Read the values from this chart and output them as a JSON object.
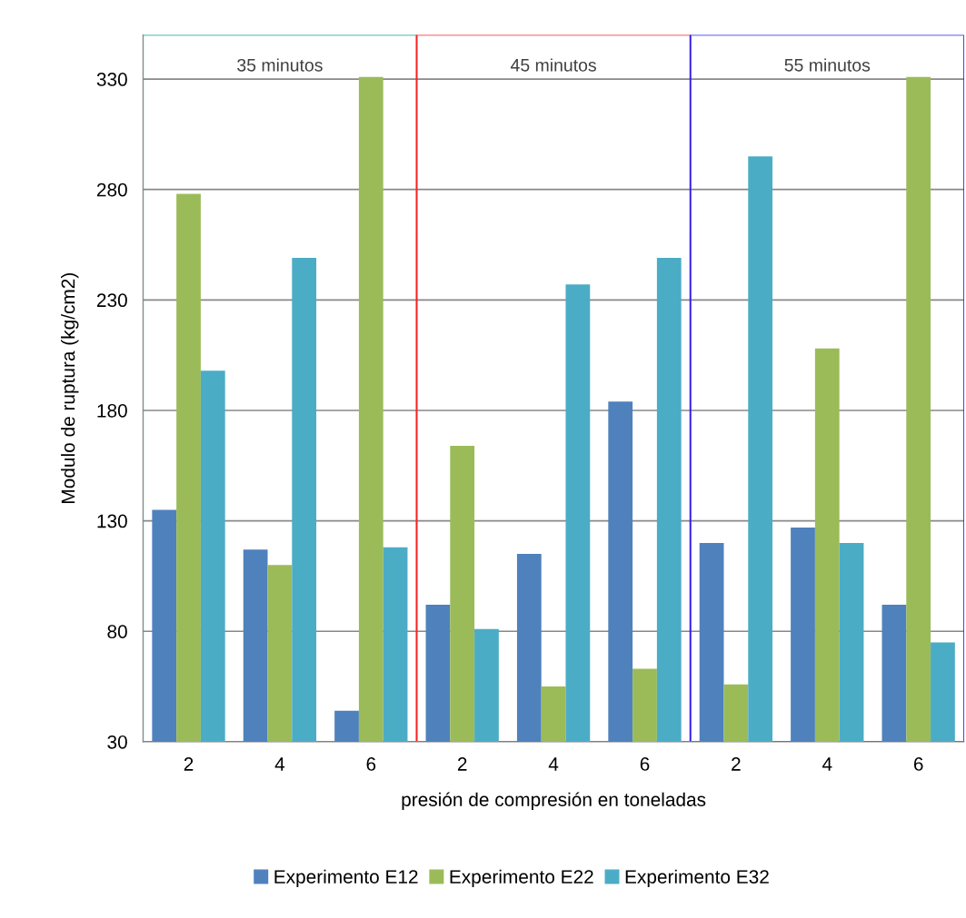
{
  "chart_data": {
    "type": "bar",
    "categories": [
      "2",
      "4",
      "6",
      "2",
      "4",
      "6",
      "2",
      "4",
      "6"
    ],
    "xlabel": "presión de compresión en toneladas",
    "ylabel": "Modulo de ruptura (kg/cm2)",
    "series": [
      {
        "name": "Experimento E12",
        "color": "#4f81bd",
        "values": [
          135,
          117,
          44,
          92,
          115,
          184,
          120,
          127,
          92
        ]
      },
      {
        "name": "Experimento E22",
        "color": "#9bbb59",
        "values": [
          278,
          110,
          331,
          164,
          55,
          63,
          56,
          208,
          331
        ]
      },
      {
        "name": "Experimento E32",
        "color": "#4bacc6",
        "values": [
          198,
          249,
          118,
          81,
          237,
          249,
          295,
          120,
          75
        ]
      }
    ],
    "ylim": [
      30,
      350
    ],
    "yticks": [
      30,
      80,
      130,
      180,
      230,
      280,
      330
    ],
    "grid": "y",
    "legend": "bottom",
    "annotations": [
      "35 minutos",
      "45 minutos",
      "55 minutos"
    ]
  }
}
